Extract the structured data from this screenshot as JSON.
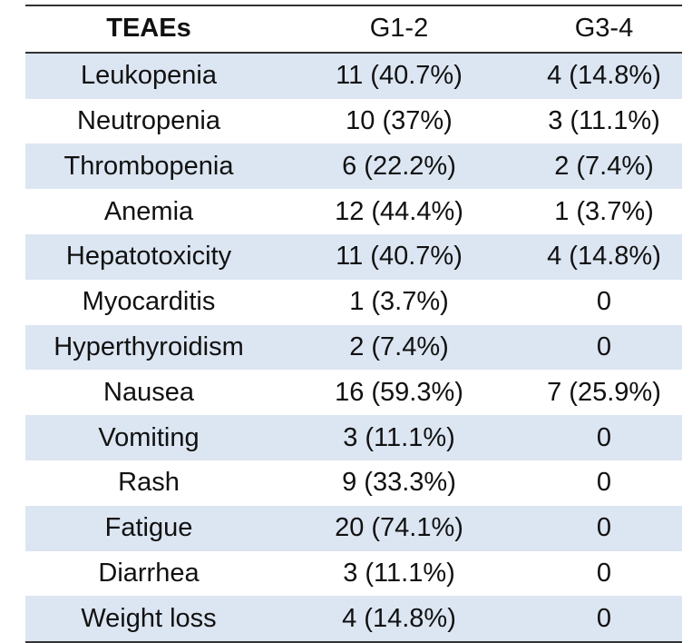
{
  "table": {
    "header": [
      "TEAEs",
      "G1-2",
      "G3-4"
    ],
    "rows": [
      [
        "Leukopenia",
        "11 (40.7%)",
        "4 (14.8%)"
      ],
      [
        "Neutropenia",
        "10 (37%)",
        "3 (11.1%)"
      ],
      [
        "Thrombopenia",
        "6 (22.2%)",
        "2 (7.4%)"
      ],
      [
        "Anemia",
        "12 (44.4%)",
        "1 (3.7%)"
      ],
      [
        "Hepatotoxicity",
        "11 (40.7%)",
        "4 (14.8%)"
      ],
      [
        "Myocarditis",
        "1 (3.7%)",
        "0"
      ],
      [
        "Hyperthyroidism",
        "2 (7.4%)",
        "0"
      ],
      [
        "Nausea",
        "16 (59.3%)",
        "7 (25.9%)"
      ],
      [
        "Vomiting",
        "3 (11.1%)",
        "0"
      ],
      [
        "Rash",
        "9 (33.3%)",
        "0"
      ],
      [
        "Fatigue",
        "20 (74.1%)",
        "0"
      ],
      [
        "Diarrhea",
        "3 (11.1%)",
        "0"
      ],
      [
        "Weight loss",
        "4 (14.8%)",
        "0"
      ]
    ]
  }
}
